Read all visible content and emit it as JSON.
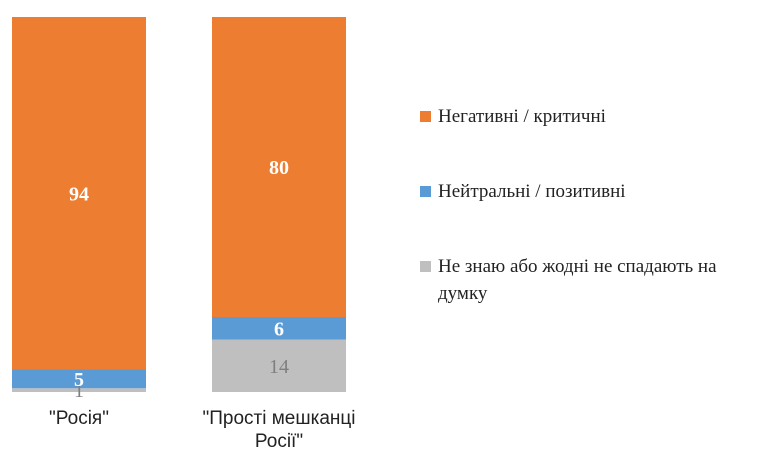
{
  "chart_data": {
    "type": "bar",
    "stacked": true,
    "orientation": "vertical",
    "categories": [
      [
        "\"Росія\""
      ],
      [
        "\"Прості мешканці",
        "Росії\""
      ]
    ],
    "series": [
      {
        "name": "Не знаю або жодні не спадають на думку",
        "legend_lines": [
          "Не знаю або жодні не спадають на",
          "думку"
        ],
        "values": [
          1,
          14
        ],
        "color": "#bfbfbf",
        "label_color": "#7f7f7f",
        "label_bold": false
      },
      {
        "name": "Нейтральні / позитивні",
        "legend_lines": [
          "Нейтральні / позитивні"
        ],
        "values": [
          5,
          6
        ],
        "color": "#5b9bd5",
        "label_color": "#ffffff",
        "label_bold": true
      },
      {
        "name": "Негативні / критичні",
        "legend_lines": [
          "Негативні / критичні"
        ],
        "values": [
          94,
          80
        ],
        "color": "#ed7d31",
        "label_color": "#ffffff",
        "label_bold": true
      }
    ],
    "ylim": [
      0,
      100
    ],
    "grid": false,
    "legend_position": "right"
  }
}
